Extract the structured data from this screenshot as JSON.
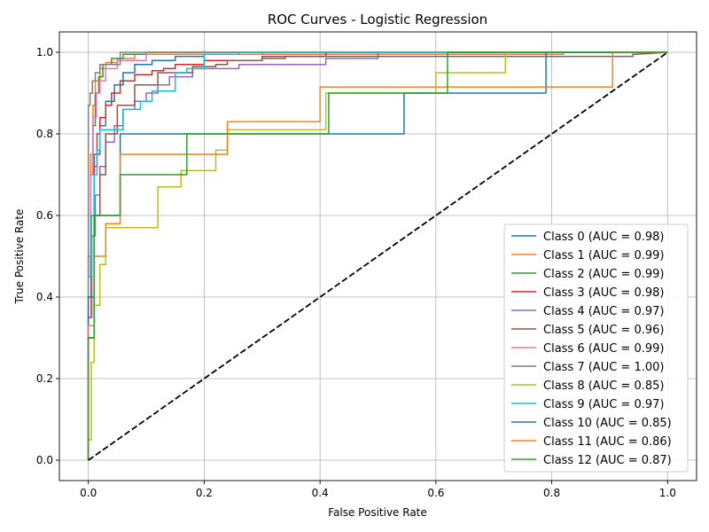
{
  "chart_data": {
    "type": "line",
    "title": "ROC Curves - Logistic Regression",
    "xlabel": "False Positive Rate",
    "ylabel": "True Positive Rate",
    "xlim": [
      -0.05,
      1.05
    ],
    "ylim": [
      -0.05,
      1.05
    ],
    "grid": true,
    "legend_position": "lower-right",
    "x_ticks": [
      0.0,
      0.2,
      0.4,
      0.6,
      0.8,
      1.0
    ],
    "x_tick_labels": [
      "0.0",
      "0.2",
      "0.4",
      "0.6",
      "0.8",
      "1.0"
    ],
    "y_ticks": [
      0.0,
      0.2,
      0.4,
      0.6,
      0.8,
      1.0
    ],
    "y_tick_labels": [
      "0.0",
      "0.2",
      "0.4",
      "0.6",
      "0.8",
      "1.0"
    ],
    "reference_line": {
      "name": "chance",
      "x": [
        0,
        1
      ],
      "y": [
        0,
        1
      ],
      "color": "#000000",
      "style": "dashed"
    },
    "series": [
      {
        "name": "Class 0",
        "label": "Class 0 (AUC = 0.98)",
        "auc": 0.98,
        "color": "#1f77b4",
        "x": [
          0,
          0,
          0.005,
          0.005,
          0.01,
          0.01,
          0.02,
          0.02,
          0.03,
          0.03,
          0.045,
          0.045,
          0.06,
          0.06,
          0.08,
          0.08,
          0.11,
          0.11,
          0.15,
          0.15,
          0.2,
          0.2,
          0.3,
          0.3,
          1.0
        ],
        "y": [
          0,
          0.4,
          0.4,
          0.6,
          0.6,
          0.75,
          0.75,
          0.82,
          0.82,
          0.88,
          0.88,
          0.92,
          0.92,
          0.95,
          0.95,
          0.97,
          0.97,
          0.98,
          0.98,
          0.99,
          0.99,
          0.995,
          0.995,
          1.0,
          1.0
        ]
      },
      {
        "name": "Class 1",
        "label": "Class 1 (AUC = 0.99)",
        "auc": 0.99,
        "color": "#ff7f0e",
        "x": [
          0,
          0,
          0.004,
          0.004,
          0.008,
          0.008,
          0.012,
          0.012,
          0.02,
          0.02,
          0.03,
          0.03,
          0.05,
          0.05,
          0.08,
          0.08,
          0.82,
          0.82,
          1.0
        ],
        "y": [
          0,
          0.5,
          0.5,
          0.75,
          0.75,
          0.87,
          0.87,
          0.93,
          0.93,
          0.96,
          0.96,
          0.975,
          0.975,
          0.985,
          0.985,
          0.995,
          0.995,
          1.0,
          1.0
        ]
      },
      {
        "name": "Class 2",
        "label": "Class 2 (AUC = 0.99)",
        "auc": 0.99,
        "color": "#2ca02c",
        "x": [
          0,
          0,
          0.004,
          0.004,
          0.008,
          0.008,
          0.012,
          0.012,
          0.018,
          0.018,
          0.025,
          0.025,
          0.04,
          0.04,
          0.06,
          0.06,
          0.1,
          0.1,
          1.0
        ],
        "y": [
          0,
          0.45,
          0.45,
          0.7,
          0.7,
          0.82,
          0.82,
          0.9,
          0.9,
          0.94,
          0.94,
          0.97,
          0.97,
          0.985,
          0.985,
          0.995,
          0.995,
          1.0,
          1.0
        ]
      },
      {
        "name": "Class 3",
        "label": "Class 3 (AUC = 0.98)",
        "auc": 0.98,
        "color": "#d62728",
        "x": [
          0,
          0,
          0.005,
          0.005,
          0.01,
          0.01,
          0.015,
          0.015,
          0.02,
          0.02,
          0.03,
          0.03,
          0.04,
          0.04,
          0.055,
          0.055,
          0.08,
          0.08,
          0.11,
          0.11,
          0.13,
          0.13,
          0.15,
          0.15,
          0.2,
          0.2,
          0.3,
          0.3,
          0.41,
          0.41,
          1.0
        ],
        "y": [
          0,
          0.35,
          0.35,
          0.6,
          0.6,
          0.72,
          0.72,
          0.8,
          0.8,
          0.84,
          0.84,
          0.87,
          0.87,
          0.9,
          0.9,
          0.93,
          0.93,
          0.945,
          0.945,
          0.955,
          0.955,
          0.96,
          0.96,
          0.97,
          0.97,
          0.98,
          0.98,
          0.99,
          0.99,
          1.0,
          1.0
        ]
      },
      {
        "name": "Class 4",
        "label": "Class 4 (AUC = 0.97)",
        "auc": 0.97,
        "color": "#9467bd",
        "x": [
          0,
          0,
          0.006,
          0.006,
          0.012,
          0.012,
          0.02,
          0.02,
          0.03,
          0.03,
          0.045,
          0.045,
          0.06,
          0.06,
          0.08,
          0.08,
          0.1,
          0.1,
          0.12,
          0.12,
          0.14,
          0.14,
          0.18,
          0.18,
          0.26,
          0.26,
          0.41,
          0.41,
          0.5,
          0.5,
          1.0
        ],
        "y": [
          0,
          0.35,
          0.35,
          0.55,
          0.55,
          0.65,
          0.65,
          0.72,
          0.72,
          0.78,
          0.78,
          0.82,
          0.82,
          0.86,
          0.86,
          0.88,
          0.88,
          0.9,
          0.9,
          0.92,
          0.92,
          0.94,
          0.94,
          0.96,
          0.96,
          0.97,
          0.97,
          0.985,
          0.985,
          1.0,
          1.0
        ]
      },
      {
        "name": "Class 5",
        "label": "Class 5 (AUC = 0.96)",
        "auc": 0.96,
        "color": "#8c564b",
        "x": [
          0,
          0,
          0.01,
          0.01,
          0.02,
          0.02,
          0.03,
          0.03,
          0.05,
          0.05,
          0.08,
          0.08,
          0.12,
          0.12,
          0.18,
          0.18,
          0.22,
          0.22,
          0.24,
          0.24,
          0.3,
          0.3,
          0.34,
          0.34,
          0.94,
          0.94,
          0.944,
          1.0
        ],
        "y": [
          0,
          0.3,
          0.3,
          0.6,
          0.6,
          0.7,
          0.7,
          0.8,
          0.8,
          0.87,
          0.87,
          0.92,
          0.92,
          0.95,
          0.95,
          0.965,
          0.965,
          0.97,
          0.97,
          0.98,
          0.98,
          0.985,
          0.985,
          0.99,
          0.99,
          0.995,
          0.995,
          1.0
        ]
      },
      {
        "name": "Class 6",
        "label": "Class 6 (AUC = 0.99)",
        "auc": 0.99,
        "color": "#e377c2",
        "x": [
          0,
          0,
          0.004,
          0.004,
          0.008,
          0.008,
          0.014,
          0.014,
          0.02,
          0.02,
          0.03,
          0.03,
          0.05,
          0.05,
          0.1,
          0.1,
          1.0
        ],
        "y": [
          0,
          0.5,
          0.5,
          0.7,
          0.7,
          0.84,
          0.84,
          0.9,
          0.9,
          0.93,
          0.93,
          0.96,
          0.96,
          0.98,
          0.98,
          1.0,
          1.0
        ]
      },
      {
        "name": "Class 7",
        "label": "Class 7 (AUC = 1.00)",
        "auc": 1.0,
        "color": "#7f7f7f",
        "x": [
          0,
          0,
          0.003,
          0.003,
          0.007,
          0.007,
          0.012,
          0.012,
          0.02,
          0.02,
          0.055,
          0.055,
          1.0
        ],
        "y": [
          0,
          0.87,
          0.87,
          0.9,
          0.9,
          0.93,
          0.93,
          0.95,
          0.95,
          0.97,
          0.97,
          1.0,
          1.0
        ]
      },
      {
        "name": "Class 8",
        "label": "Class 8 (AUC = 0.85)",
        "auc": 0.85,
        "color": "#bcbd22",
        "x": [
          0,
          0,
          0.005,
          0.005,
          0.01,
          0.01,
          0.02,
          0.02,
          0.03,
          0.03,
          0.12,
          0.12,
          0.16,
          0.16,
          0.18,
          0.18,
          0.22,
          0.22,
          0.24,
          0.24,
          0.41,
          0.41,
          0.6,
          0.6,
          0.72,
          0.72,
          1.0
        ],
        "y": [
          0,
          0.05,
          0.05,
          0.24,
          0.24,
          0.38,
          0.38,
          0.48,
          0.48,
          0.57,
          0.57,
          0.67,
          0.67,
          0.71,
          0.71,
          0.71,
          0.71,
          0.76,
          0.76,
          0.81,
          0.81,
          0.9,
          0.9,
          0.95,
          0.95,
          1.0,
          1.0
        ]
      },
      {
        "name": "Class 9",
        "label": "Class 9 (AUC = 0.97)",
        "auc": 0.97,
        "color": "#17becf",
        "x": [
          0,
          0,
          0.005,
          0.005,
          0.01,
          0.01,
          0.015,
          0.015,
          0.02,
          0.02,
          0.035,
          0.035,
          0.06,
          0.06,
          0.09,
          0.09,
          0.11,
          0.11,
          0.15,
          0.15,
          0.17,
          0.17,
          0.2,
          0.2,
          0.26,
          0.26,
          1.0
        ],
        "y": [
          0,
          0.45,
          0.45,
          0.6,
          0.6,
          0.7,
          0.7,
          0.76,
          0.76,
          0.81,
          0.81,
          0.81,
          0.81,
          0.86,
          0.86,
          0.88,
          0.88,
          0.905,
          0.905,
          0.95,
          0.95,
          0.96,
          0.96,
          0.995,
          0.995,
          1.0,
          1.0
        ]
      },
      {
        "name": "Class 10",
        "label": "Class 10 (AUC = 0.85)",
        "auc": 0.85,
        "color": "#1f77b4",
        "x": [
          0,
          0,
          0.01,
          0.01,
          0.055,
          0.055,
          0.545,
          0.545,
          0.79,
          0.79,
          1.0
        ],
        "y": [
          0,
          0.4,
          0.4,
          0.6,
          0.6,
          0.8,
          0.8,
          0.9,
          0.9,
          1.0,
          1.0
        ]
      },
      {
        "name": "Class 11",
        "label": "Class 11 (AUC = 0.86)",
        "auc": 0.86,
        "color": "#ff7f0e",
        "x": [
          0,
          0,
          0.01,
          0.01,
          0.03,
          0.03,
          0.055,
          0.055,
          0.24,
          0.24,
          0.4,
          0.4,
          0.905,
          0.905,
          1.0
        ],
        "y": [
          0,
          0.33,
          0.33,
          0.5,
          0.5,
          0.58,
          0.58,
          0.75,
          0.75,
          0.83,
          0.83,
          0.915,
          0.915,
          1.0,
          1.0
        ]
      },
      {
        "name": "Class 12",
        "label": "Class 12 (AUC = 0.87)",
        "auc": 0.87,
        "color": "#2ca02c",
        "x": [
          0,
          0,
          0.01,
          0.01,
          0.025,
          0.025,
          0.055,
          0.055,
          0.17,
          0.17,
          0.415,
          0.415,
          0.62,
          0.62,
          1.0
        ],
        "y": [
          0,
          0.3,
          0.3,
          0.6,
          0.6,
          0.6,
          0.6,
          0.7,
          0.7,
          0.8,
          0.8,
          0.9,
          0.9,
          1.0,
          1.0
        ]
      }
    ]
  }
}
